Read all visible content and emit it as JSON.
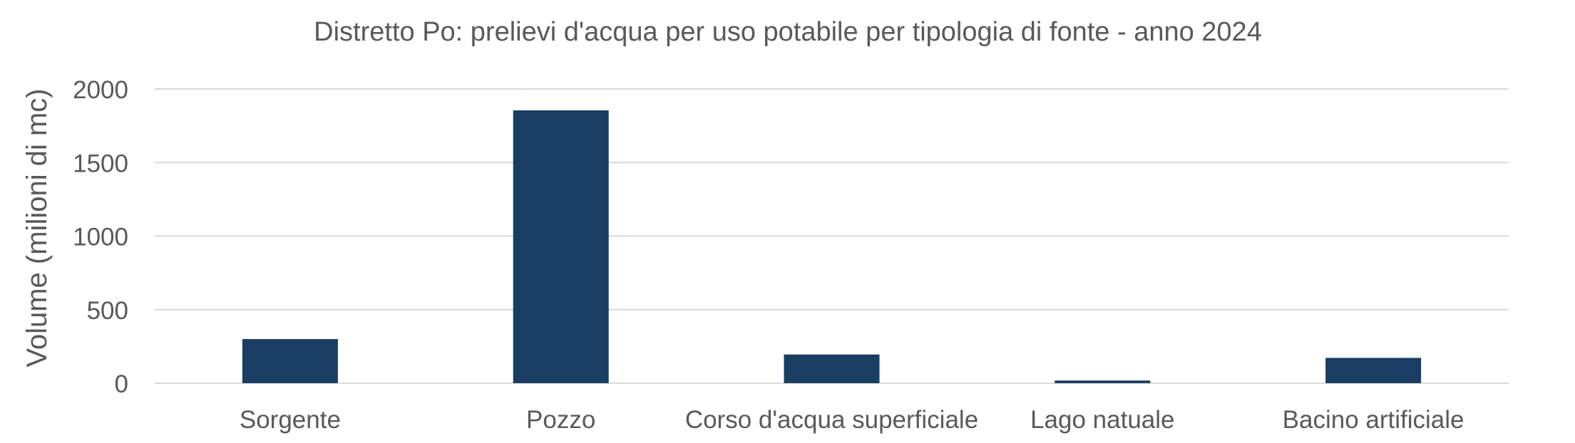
{
  "chart_data": {
    "type": "bar",
    "title": "Distretto Po: prelievi d'acqua per uso potabile per tipologia di fonte - anno 2024",
    "xlabel": "",
    "ylabel": "Volume (milioni di mc)",
    "categories": [
      "Sorgente",
      "Pozzo",
      "Corso d'acqua superficiale",
      "Lago natuale",
      "Bacino artificiale"
    ],
    "series": [
      {
        "values": [
          300,
          1855,
          195,
          18,
          172
        ]
      }
    ],
    "ylim": [
      0,
      2000
    ],
    "yticks": [
      "0",
      "500",
      "1000",
      "1500",
      "2000"
    ],
    "grid": true,
    "legend": "none",
    "colors": {
      "bar": "#1a3d63",
      "grid": "#d9d9d9",
      "text": "#595959"
    }
  }
}
